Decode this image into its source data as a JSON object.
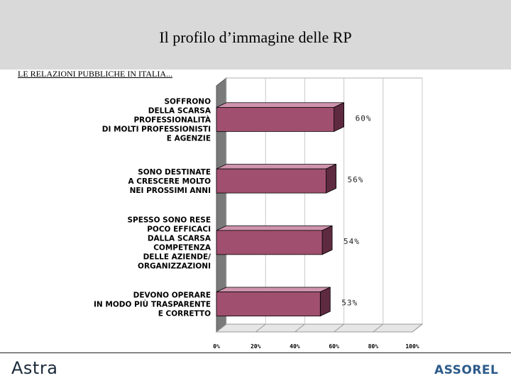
{
  "header": {
    "title": "Il profilo d’immagine delle RP",
    "subtitle": "LE RELAZIONI PUBBLICHE IN ITALIA..."
  },
  "footer": {
    "left_logo": "Astra",
    "right_logo": "ASSOREL"
  },
  "colors": {
    "bar_front": "#a0506e",
    "bar_top": "#cf93ad",
    "bar_side": "#5e2a40",
    "header_band": "#d9d9d9"
  },
  "chart_data": {
    "type": "bar",
    "orientation": "horizontal",
    "style": "3d",
    "categories": [
      [
        "SOFFRONO",
        "DELLA SCARSA",
        "PROFESSIONALITÀ",
        "DI MOLTI PROFESSIONISTI",
        "E AGENZIE"
      ],
      [
        "SONO DESTINATE",
        "A CRESCERE MOLTO",
        "NEI PROSSIMI ANNI"
      ],
      [
        "SPESSO SONO RESE",
        "POCO EFFICACI",
        "DALLA SCARSA",
        "COMPETENZA",
        "DELLE AZIENDE/",
        "ORGANIZZAZIONI"
      ],
      [
        "DEVONO OPERARE",
        "IN MODO PIÙ TRASPARENTE",
        "E CORRETTO"
      ]
    ],
    "values": [
      60,
      56,
      54,
      53
    ],
    "value_labels": [
      "60%",
      "56%",
      "54%",
      "53%"
    ],
    "xlim": [
      0,
      100
    ],
    "xticks": [
      "0%",
      "20%",
      "40%",
      "60%",
      "80%",
      "100%"
    ],
    "grid": true
  }
}
